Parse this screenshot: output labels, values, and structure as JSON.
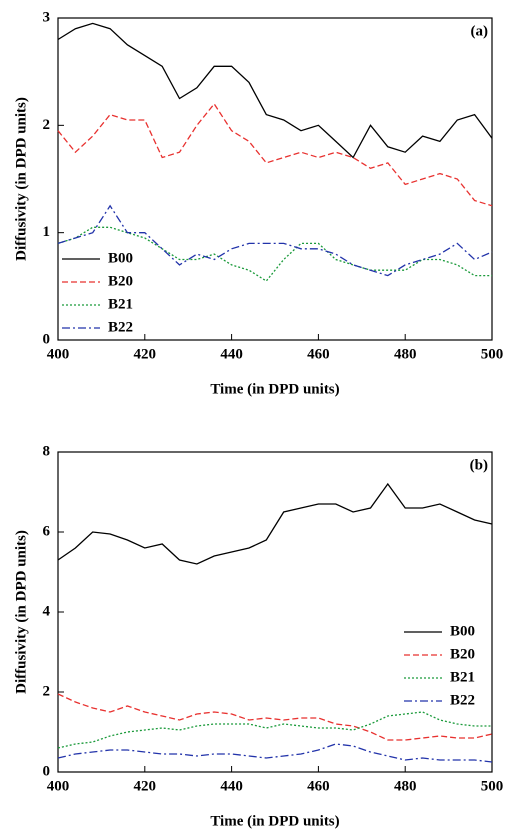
{
  "chart_data": [
    {
      "type": "line",
      "annotation": "(a)",
      "x_label": "Time (in DPD units)",
      "y_label": "Diffusivity (in DPD units)",
      "x": [
        400,
        404,
        408,
        412,
        416,
        420,
        424,
        428,
        432,
        436,
        440,
        444,
        448,
        452,
        456,
        460,
        464,
        468,
        472,
        476,
        480,
        484,
        488,
        492,
        496,
        500
      ],
      "xlim": [
        400,
        500
      ],
      "xticks": [
        400,
        420,
        440,
        460,
        480,
        500
      ],
      "ylim": [
        0,
        3
      ],
      "yticks": [
        0,
        1,
        2,
        3
      ],
      "legend": "lower left",
      "series": [
        {
          "name": "B00",
          "color": "#000000",
          "dash": "solid",
          "values": [
            2.8,
            2.9,
            2.95,
            2.9,
            2.75,
            2.65,
            2.55,
            2.25,
            2.35,
            2.55,
            2.55,
            2.4,
            2.1,
            2.05,
            1.95,
            2.0,
            1.85,
            1.7,
            2.0,
            1.8,
            1.75,
            1.9,
            1.85,
            2.05,
            2.1,
            1.88
          ]
        },
        {
          "name": "B20",
          "color": "#e8312f",
          "dash": "dashed",
          "values": [
            1.95,
            1.75,
            1.9,
            2.1,
            2.05,
            2.05,
            1.7,
            1.75,
            2.0,
            2.2,
            1.95,
            1.85,
            1.65,
            1.7,
            1.75,
            1.7,
            1.75,
            1.7,
            1.6,
            1.65,
            1.45,
            1.5,
            1.55,
            1.5,
            1.3,
            1.25
          ]
        },
        {
          "name": "B21",
          "color": "#1a9a3a",
          "dash": "dotted",
          "values": [
            0.9,
            0.95,
            1.05,
            1.05,
            1.0,
            0.95,
            0.85,
            0.75,
            0.75,
            0.8,
            0.7,
            0.65,
            0.55,
            0.75,
            0.9,
            0.9,
            0.75,
            0.7,
            0.65,
            0.65,
            0.65,
            0.75,
            0.75,
            0.7,
            0.6,
            0.6
          ]
        },
        {
          "name": "B22",
          "color": "#2233aa",
          "dash": "dashdot",
          "values": [
            0.9,
            0.95,
            1.0,
            1.25,
            1.0,
            1.0,
            0.85,
            0.7,
            0.8,
            0.75,
            0.85,
            0.9,
            0.9,
            0.9,
            0.85,
            0.85,
            0.8,
            0.7,
            0.65,
            0.6,
            0.7,
            0.75,
            0.8,
            0.9,
            0.75,
            0.82
          ]
        }
      ]
    },
    {
      "type": "line",
      "annotation": "(b)",
      "x_label": "Time (in DPD units)",
      "y_label": "Diffusivity (in DPD units)",
      "x": [
        400,
        404,
        408,
        412,
        416,
        420,
        424,
        428,
        432,
        436,
        440,
        444,
        448,
        452,
        456,
        460,
        464,
        468,
        472,
        476,
        480,
        484,
        488,
        492,
        496,
        500
      ],
      "xlim": [
        400,
        500
      ],
      "xticks": [
        400,
        420,
        440,
        460,
        480,
        500
      ],
      "ylim": [
        0,
        8
      ],
      "yticks": [
        0,
        2,
        4,
        6,
        8
      ],
      "legend": "center right",
      "series": [
        {
          "name": "B00",
          "color": "#000000",
          "dash": "solid",
          "values": [
            5.3,
            5.6,
            6.0,
            5.95,
            5.8,
            5.6,
            5.7,
            5.3,
            5.2,
            5.4,
            5.5,
            5.6,
            5.8,
            6.5,
            6.6,
            6.7,
            6.7,
            6.5,
            6.6,
            7.2,
            6.6,
            6.6,
            6.7,
            6.5,
            6.3,
            6.2
          ]
        },
        {
          "name": "B20",
          "color": "#e8312f",
          "dash": "dashed",
          "values": [
            1.95,
            1.75,
            1.6,
            1.5,
            1.65,
            1.5,
            1.4,
            1.3,
            1.45,
            1.5,
            1.45,
            1.3,
            1.35,
            1.3,
            1.35,
            1.35,
            1.2,
            1.15,
            1.0,
            0.8,
            0.8,
            0.85,
            0.9,
            0.85,
            0.85,
            0.95
          ]
        },
        {
          "name": "B21",
          "color": "#1a9a3a",
          "dash": "dotted",
          "values": [
            0.6,
            0.7,
            0.75,
            0.9,
            1.0,
            1.05,
            1.1,
            1.05,
            1.15,
            1.2,
            1.2,
            1.2,
            1.1,
            1.2,
            1.15,
            1.1,
            1.1,
            1.05,
            1.2,
            1.4,
            1.45,
            1.5,
            1.3,
            1.2,
            1.15,
            1.15
          ]
        },
        {
          "name": "B22",
          "color": "#2233aa",
          "dash": "dashdot",
          "values": [
            0.35,
            0.45,
            0.5,
            0.55,
            0.55,
            0.5,
            0.45,
            0.45,
            0.4,
            0.45,
            0.45,
            0.4,
            0.35,
            0.4,
            0.45,
            0.55,
            0.7,
            0.65,
            0.5,
            0.4,
            0.3,
            0.35,
            0.3,
            0.3,
            0.3,
            0.25
          ]
        }
      ]
    }
  ]
}
